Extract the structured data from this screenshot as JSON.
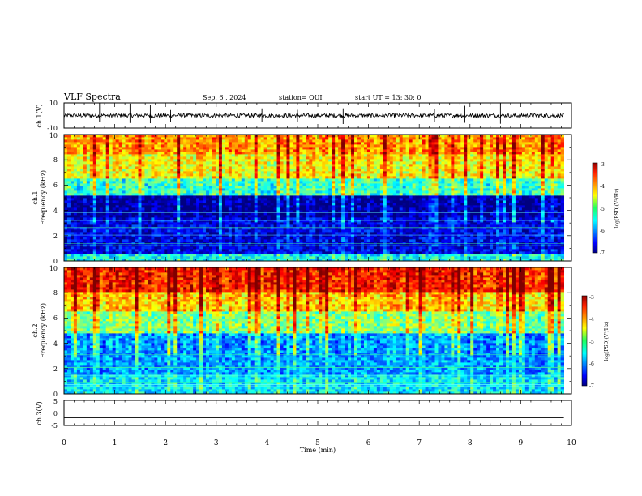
{
  "header": {
    "title": "VLF Spectra",
    "date": "Sep. 6 , 2024",
    "station": "station= OUI",
    "start": "start UT = 13: 30: 0"
  },
  "chart_data": [
    {
      "type": "line",
      "panel": "ch1-waveform",
      "ylabel": "ch.1(V)",
      "ylim": [
        -10,
        10
      ],
      "yticks": [
        10,
        -10
      ],
      "xlim": [
        0,
        10
      ],
      "series": [
        {
          "values_description": "noisy waveform near 0 V with amplitude about ±2 V and sparse spikes up to ±10 V"
        }
      ],
      "color": "#000000"
    },
    {
      "type": "heatmap",
      "panel": "ch1-spectrogram",
      "ylabel": "ch.1\nFrequency (kHz)",
      "ylim": [
        0,
        10
      ],
      "yticks": [
        0,
        2,
        4,
        6,
        8,
        10
      ],
      "xlim": [
        0,
        9.85
      ],
      "colorbar": {
        "label": "log(PSD)(V²/Hz)",
        "range": [
          -7,
          -3
        ],
        "ticks": [
          -3,
          -4,
          -5,
          -6,
          -7
        ]
      },
      "bands": [
        {
          "f_range": [
            0,
            0.5
          ],
          "level": -5.5
        },
        {
          "f_range": [
            0.5,
            3.5
          ],
          "level": -6.6
        },
        {
          "f_range": [
            3.5,
            5.2
          ],
          "level": -6.9
        },
        {
          "f_range": [
            5.2,
            6.5
          ],
          "level": -5.3
        },
        {
          "f_range": [
            6.5,
            8.5
          ],
          "level": -4.5
        },
        {
          "f_range": [
            8.5,
            10
          ],
          "level": -4.1
        }
      ]
    },
    {
      "type": "heatmap",
      "panel": "ch2-spectrogram",
      "ylabel": "ch.2\nFrequency (kHz)",
      "ylim": [
        0,
        10
      ],
      "yticks": [
        0,
        2,
        4,
        6,
        8,
        10
      ],
      "xlim": [
        0,
        9.85
      ],
      "colorbar": {
        "label": "log(PSD)(V²/Hz)",
        "range": [
          -7,
          -3
        ],
        "ticks": [
          -3,
          -4,
          -5,
          -6,
          -7
        ]
      },
      "bands": [
        {
          "f_range": [
            0,
            1.5
          ],
          "level": -5.6
        },
        {
          "f_range": [
            1.5,
            4.8
          ],
          "level": -5.9
        },
        {
          "f_range": [
            4.8,
            6.5
          ],
          "level": -5.0
        },
        {
          "f_range": [
            6.5,
            8.0
          ],
          "level": -4.3
        },
        {
          "f_range": [
            8.0,
            10
          ],
          "level": -3.6
        }
      ]
    },
    {
      "type": "line",
      "panel": "ch3-waveform",
      "ylabel": "ch.3(V)",
      "ylim": [
        -5,
        5
      ],
      "yticks": [
        5,
        0,
        -5
      ],
      "xlim": [
        0,
        10
      ],
      "series": [
        {
          "x": [
            0,
            9.85
          ],
          "y": [
            -1.8,
            -1.8
          ]
        }
      ],
      "color": "#000000"
    }
  ],
  "xaxis": {
    "label": "Time (min)",
    "ticks": [
      0,
      1,
      2,
      3,
      4,
      5,
      6,
      7,
      8,
      9,
      10
    ]
  }
}
